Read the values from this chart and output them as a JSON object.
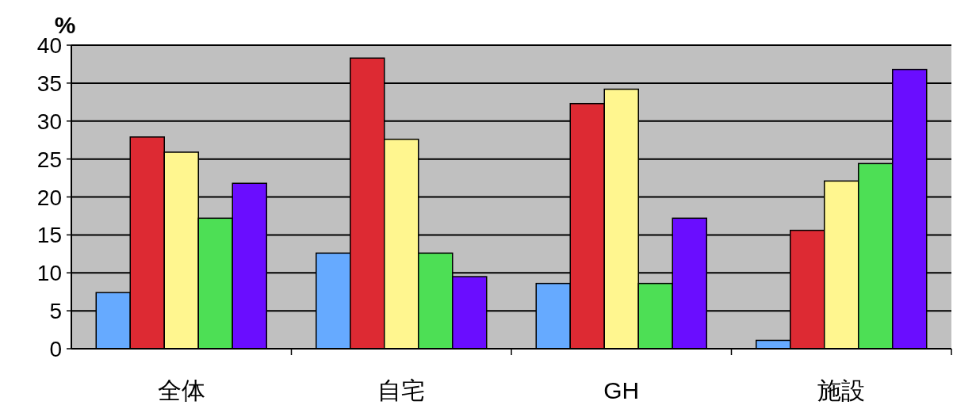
{
  "chart_data": {
    "type": "bar",
    "ylabel": "%",
    "categories": [
      "全体",
      "自宅",
      "GH",
      "施設"
    ],
    "series": [
      {
        "color": "#66aaff",
        "values": [
          7.4,
          12.6,
          8.6,
          1.1
        ]
      },
      {
        "color": "#dd2a33",
        "values": [
          27.9,
          38.3,
          32.3,
          15.6
        ]
      },
      {
        "color": "#fff68f",
        "values": [
          25.9,
          27.6,
          34.2,
          22.1
        ]
      },
      {
        "color": "#4ddf55",
        "values": [
          17.2,
          12.6,
          8.6,
          24.4
        ]
      },
      {
        "color": "#6a0dff",
        "values": [
          21.8,
          9.5,
          17.2,
          36.8
        ]
      }
    ],
    "ylim": [
      0,
      40
    ],
    "yticks": [
      0,
      5,
      10,
      15,
      20,
      25,
      30,
      35,
      40
    ],
    "grid": "y"
  }
}
